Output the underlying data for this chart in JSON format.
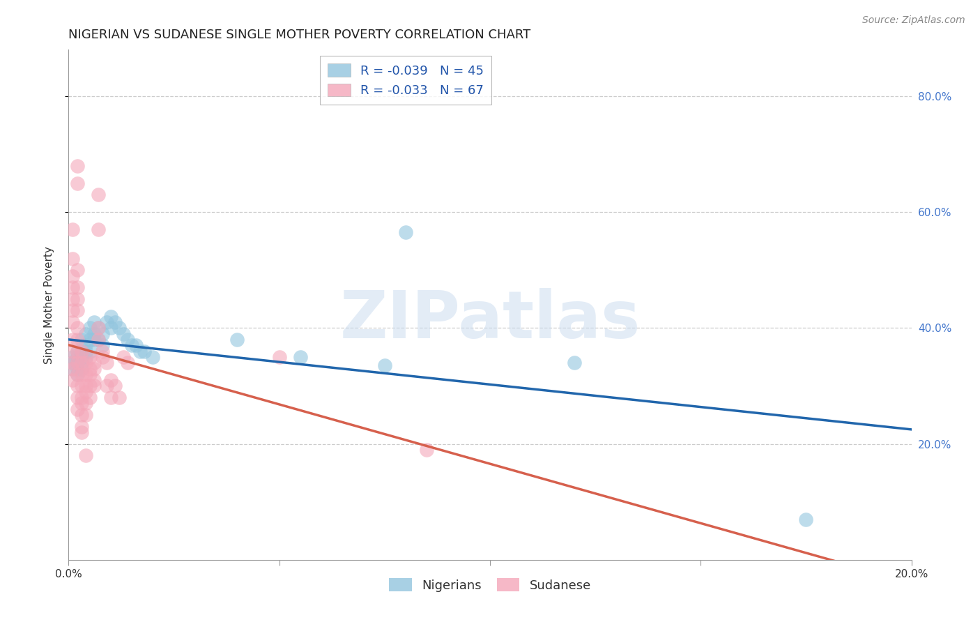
{
  "title": "NIGERIAN VS SUDANESE SINGLE MOTHER POVERTY CORRELATION CHART",
  "source": "Source: ZipAtlas.com",
  "ylabel": "Single Mother Poverty",
  "nigerian_color": "#92c5de",
  "sudanese_color": "#f4a7b9",
  "nigerian_line_color": "#2166ac",
  "sudanese_line_color": "#d6604d",
  "background_color": "#ffffff",
  "nigerian_scatter": [
    [
      0.001,
      0.35
    ],
    [
      0.001,
      0.34
    ],
    [
      0.001,
      0.33
    ],
    [
      0.002,
      0.36
    ],
    [
      0.002,
      0.35
    ],
    [
      0.002,
      0.34
    ],
    [
      0.002,
      0.33
    ],
    [
      0.002,
      0.32
    ],
    [
      0.003,
      0.38
    ],
    [
      0.003,
      0.36
    ],
    [
      0.003,
      0.35
    ],
    [
      0.003,
      0.34
    ],
    [
      0.003,
      0.33
    ],
    [
      0.004,
      0.39
    ],
    [
      0.004,
      0.37
    ],
    [
      0.004,
      0.36
    ],
    [
      0.004,
      0.35
    ],
    [
      0.005,
      0.4
    ],
    [
      0.005,
      0.38
    ],
    [
      0.005,
      0.36
    ],
    [
      0.006,
      0.41
    ],
    [
      0.006,
      0.39
    ],
    [
      0.006,
      0.38
    ],
    [
      0.007,
      0.4
    ],
    [
      0.007,
      0.38
    ],
    [
      0.008,
      0.39
    ],
    [
      0.008,
      0.37
    ],
    [
      0.009,
      0.41
    ],
    [
      0.01,
      0.42
    ],
    [
      0.01,
      0.4
    ],
    [
      0.011,
      0.41
    ],
    [
      0.012,
      0.4
    ],
    [
      0.013,
      0.39
    ],
    [
      0.014,
      0.38
    ],
    [
      0.015,
      0.37
    ],
    [
      0.016,
      0.37
    ],
    [
      0.017,
      0.36
    ],
    [
      0.018,
      0.36
    ],
    [
      0.02,
      0.35
    ],
    [
      0.04,
      0.38
    ],
    [
      0.055,
      0.35
    ],
    [
      0.075,
      0.335
    ],
    [
      0.08,
      0.565
    ],
    [
      0.12,
      0.34
    ],
    [
      0.175,
      0.07
    ]
  ],
  "sudanese_scatter": [
    [
      0.001,
      0.57
    ],
    [
      0.001,
      0.52
    ],
    [
      0.001,
      0.49
    ],
    [
      0.001,
      0.47
    ],
    [
      0.001,
      0.45
    ],
    [
      0.001,
      0.43
    ],
    [
      0.001,
      0.41
    ],
    [
      0.001,
      0.38
    ],
    [
      0.001,
      0.36
    ],
    [
      0.001,
      0.34
    ],
    [
      0.001,
      0.33
    ],
    [
      0.001,
      0.31
    ],
    [
      0.002,
      0.68
    ],
    [
      0.002,
      0.65
    ],
    [
      0.002,
      0.5
    ],
    [
      0.002,
      0.47
    ],
    [
      0.002,
      0.45
    ],
    [
      0.002,
      0.43
    ],
    [
      0.002,
      0.4
    ],
    [
      0.002,
      0.38
    ],
    [
      0.002,
      0.36
    ],
    [
      0.002,
      0.34
    ],
    [
      0.002,
      0.32
    ],
    [
      0.002,
      0.3
    ],
    [
      0.002,
      0.28
    ],
    [
      0.002,
      0.26
    ],
    [
      0.003,
      0.36
    ],
    [
      0.003,
      0.34
    ],
    [
      0.003,
      0.32
    ],
    [
      0.003,
      0.3
    ],
    [
      0.003,
      0.28
    ],
    [
      0.003,
      0.27
    ],
    [
      0.003,
      0.25
    ],
    [
      0.003,
      0.23
    ],
    [
      0.003,
      0.22
    ],
    [
      0.004,
      0.34
    ],
    [
      0.004,
      0.32
    ],
    [
      0.004,
      0.3
    ],
    [
      0.004,
      0.29
    ],
    [
      0.004,
      0.27
    ],
    [
      0.004,
      0.25
    ],
    [
      0.004,
      0.18
    ],
    [
      0.005,
      0.35
    ],
    [
      0.005,
      0.33
    ],
    [
      0.005,
      0.32
    ],
    [
      0.005,
      0.3
    ],
    [
      0.005,
      0.28
    ],
    [
      0.006,
      0.34
    ],
    [
      0.006,
      0.33
    ],
    [
      0.006,
      0.31
    ],
    [
      0.006,
      0.3
    ],
    [
      0.007,
      0.63
    ],
    [
      0.007,
      0.57
    ],
    [
      0.007,
      0.4
    ],
    [
      0.007,
      0.38
    ],
    [
      0.008,
      0.36
    ],
    [
      0.008,
      0.35
    ],
    [
      0.009,
      0.34
    ],
    [
      0.009,
      0.3
    ],
    [
      0.01,
      0.31
    ],
    [
      0.01,
      0.28
    ],
    [
      0.011,
      0.3
    ],
    [
      0.012,
      0.28
    ],
    [
      0.013,
      0.35
    ],
    [
      0.014,
      0.34
    ],
    [
      0.05,
      0.35
    ],
    [
      0.085,
      0.19
    ]
  ],
  "xlim": [
    0.0,
    0.2
  ],
  "ylim": [
    0.0,
    0.88
  ],
  "xticks": [
    0.0,
    0.05,
    0.1,
    0.15,
    0.2
  ],
  "xtick_labels": [
    "0.0%",
    "",
    "",
    "",
    "20.0%"
  ],
  "yticks": [
    0.2,
    0.4,
    0.6,
    0.8
  ],
  "ytick_labels_right": [
    "20.0%",
    "40.0%",
    "60.0%",
    "80.0%"
  ],
  "watermark": "ZIPatlas",
  "title_fontsize": 13,
  "source_fontsize": 10,
  "axis_label_fontsize": 11,
  "tick_fontsize": 11,
  "legend_fontsize": 13
}
